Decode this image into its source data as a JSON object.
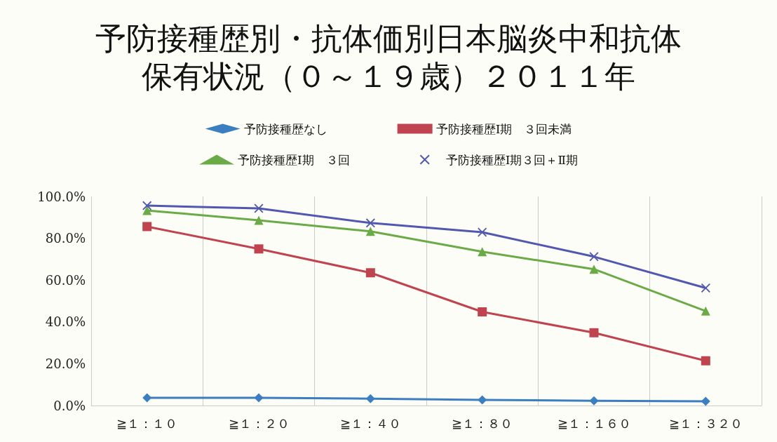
{
  "chart_data": {
    "type": "line",
    "title": "予防接種歴別・抗体価別日本脳炎中和抗体保有状況（０～１９歳）２０１１年",
    "categories": [
      "≧１：１０",
      "≧１：２０",
      "≧１：４０",
      "≧１：８０",
      "≧１：１６０",
      "≧１：３２０"
    ],
    "series": [
      {
        "name": "予防接種歴なし",
        "color": "#3b7fc0",
        "marker": "diamond",
        "values": [
          3.7,
          3.7,
          3.3,
          2.7,
          2.3,
          2.0
        ]
      },
      {
        "name": "予防接種歴Ⅰ期　３回未満",
        "color": "#c0444f",
        "marker": "square",
        "values": [
          85.6,
          74.9,
          63.5,
          44.8,
          34.8,
          21.4
        ]
      },
      {
        "name": "予防接種歴Ⅰ期　３回",
        "color": "#6aab47",
        "marker": "triangle",
        "values": [
          93.3,
          88.6,
          83.3,
          73.6,
          65.2,
          45.2
        ]
      },
      {
        "name": "予防接種歴Ⅰ期３回＋Ⅱ期",
        "color": "#5258b0",
        "marker": "cross",
        "values": [
          95.6,
          94.3,
          87.3,
          82.9,
          71.2,
          56.2
        ]
      }
    ],
    "ylim": [
      0,
      100
    ],
    "yticks": [
      {
        "value": 0,
        "label": "0.0%"
      },
      {
        "value": 20,
        "label": "20.0%"
      },
      {
        "value": 40,
        "label": "40.0%"
      },
      {
        "value": 60,
        "label": "60.0%"
      },
      {
        "value": 80,
        "label": "80.0%"
      },
      {
        "value": 100,
        "label": "100.0%"
      }
    ],
    "grid": "x",
    "legend": "top",
    "line_style": "solid"
  }
}
